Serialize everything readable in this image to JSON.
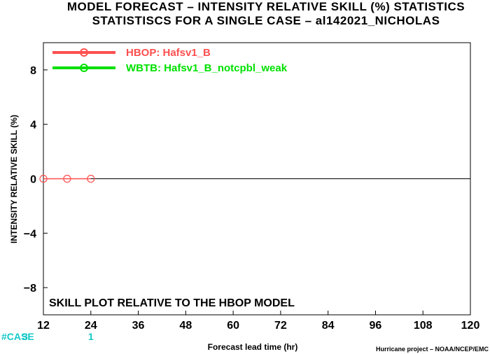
{
  "chart_data": {
    "type": "line",
    "title": "MODEL FORECAST – INTENSITY RELATIVE SKILL (%) STATISTICS",
    "subtitle": "STATISTISCS FOR A SINGLE CASE – al142021_NICHOLAS",
    "xlabel": "Forecast lead time (hr)",
    "ylabel": "INTENSITY RELATIVE SKILL (%)",
    "xlim": [
      12,
      120
    ],
    "ylim": [
      -10,
      10
    ],
    "x_ticks": [
      12,
      24,
      36,
      48,
      60,
      72,
      84,
      96,
      108,
      120
    ],
    "y_ticks": [
      -8,
      -4,
      0,
      4,
      8
    ],
    "y_tick_labels": [
      "−8",
      "−4",
      "0",
      "4",
      "8"
    ],
    "series": [
      {
        "name": "HBOP: Hafsv1_B",
        "color": "#ff4f4f",
        "x": [
          12,
          18,
          24
        ],
        "y": [
          0,
          0,
          0
        ]
      },
      {
        "name": "WBTB: Hafsv1_B_notcpbl_weak",
        "color": "#00e000",
        "x": [],
        "y": []
      }
    ],
    "annotation": "SKILL PLOT RELATIVE TO THE HBOP MODEL",
    "case_label": "#CASE",
    "case_counts": [
      {
        "x": 12,
        "label": "3"
      },
      {
        "x": 24,
        "label": "1"
      }
    ],
    "credit": "Hurricane project – NOAA/NCEP/EMC",
    "legend_position": "top-left",
    "grid": false
  }
}
